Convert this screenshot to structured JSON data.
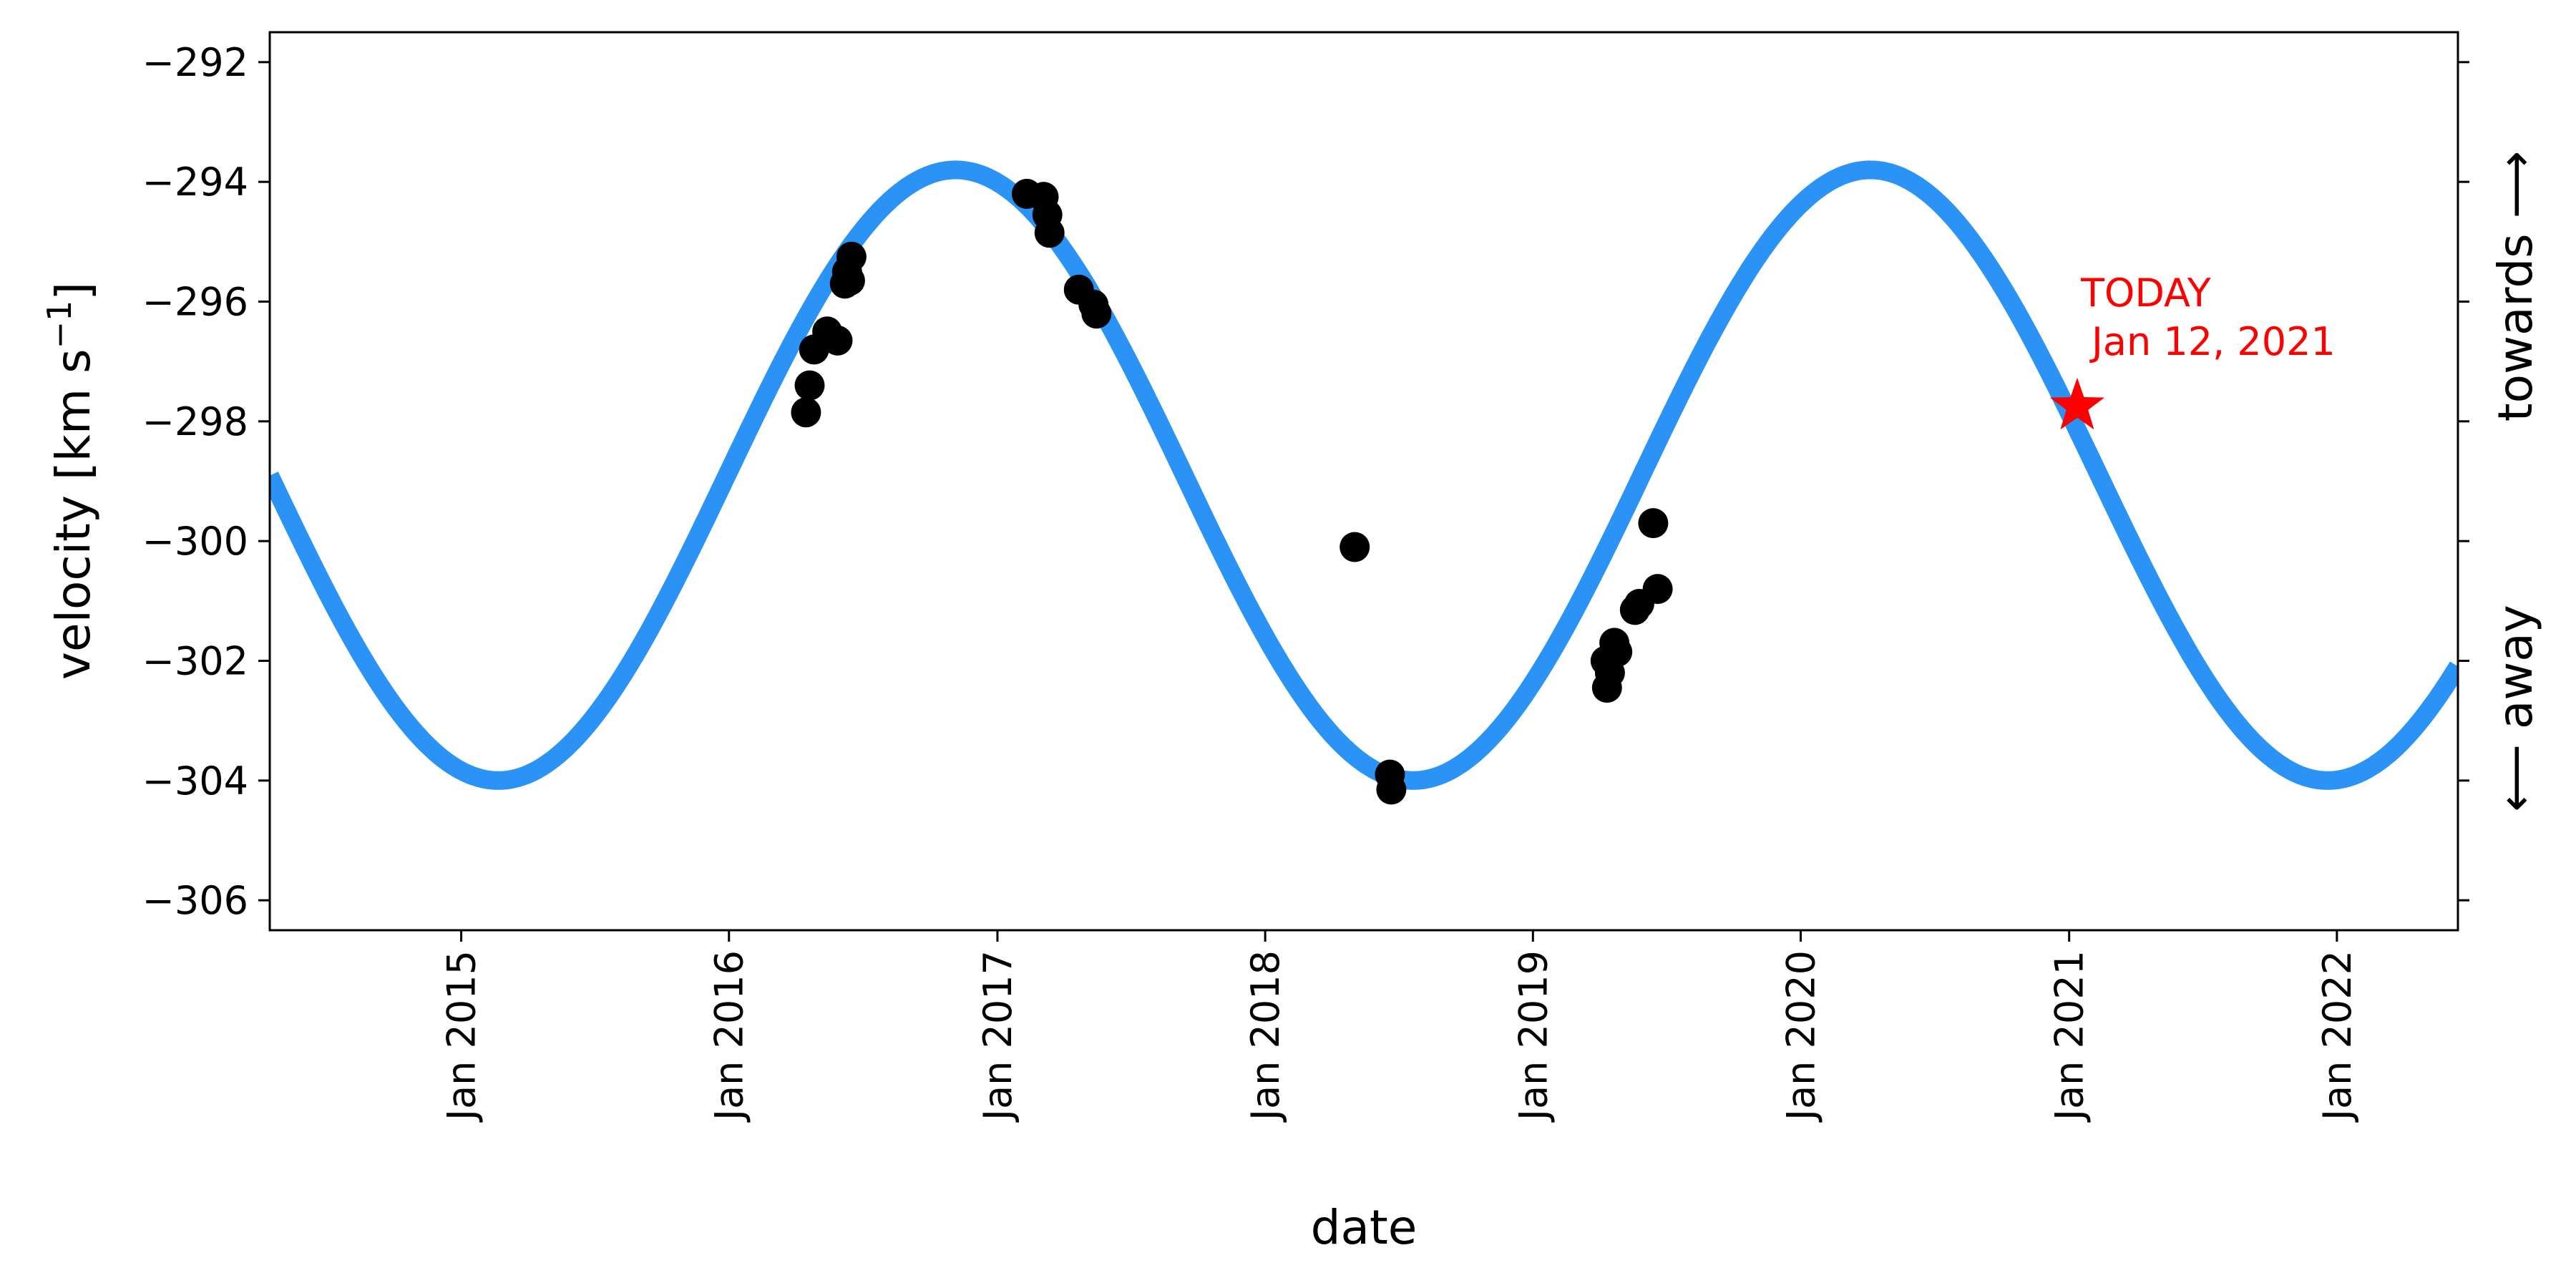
{
  "chart_data": {
    "type": "scatter",
    "xlabel": "date",
    "ylabel_main": "velocity [km s",
    "ylabel_sup": "−1",
    "ylabel_close": "]",
    "right_label_towards": "towards ⟶",
    "right_label_away": "⟵ away",
    "xlim": [
      "2014-04-15",
      "2022-06-15"
    ],
    "ylim": [
      -306.5,
      -291.5
    ],
    "x_ticks": [
      {
        "date": "2015-01-01",
        "label": "Jan 2015"
      },
      {
        "date": "2016-01-01",
        "label": "Jan 2016"
      },
      {
        "date": "2017-01-01",
        "label": "Jan 2017"
      },
      {
        "date": "2018-01-01",
        "label": "Jan 2018"
      },
      {
        "date": "2019-01-01",
        "label": "Jan 2019"
      },
      {
        "date": "2020-01-01",
        "label": "Jan 2020"
      },
      {
        "date": "2021-01-01",
        "label": "Jan 2021"
      },
      {
        "date": "2022-01-01",
        "label": "Jan 2022"
      }
    ],
    "y_ticks": [
      {
        "value": -292,
        "label": "−292"
      },
      {
        "value": -294,
        "label": "−294"
      },
      {
        "value": -296,
        "label": "−296"
      },
      {
        "value": -298,
        "label": "−298"
      },
      {
        "value": -300,
        "label": "−300"
      },
      {
        "value": -302,
        "label": "−302"
      },
      {
        "value": -304,
        "label": "−304"
      },
      {
        "value": -306,
        "label": "−306"
      }
    ],
    "model": {
      "period_days": 1247,
      "mean": -298.9,
      "amplitude": 5.1,
      "max_date": "2016-11-05",
      "color": "#2a93f5"
    },
    "observations": [
      {
        "date": "2016-04-15",
        "v": -297.85
      },
      {
        "date": "2016-04-20",
        "v": -297.4
      },
      {
        "date": "2016-04-26",
        "v": -296.8
      },
      {
        "date": "2016-05-14",
        "v": -296.5
      },
      {
        "date": "2016-05-28",
        "v": -296.65
      },
      {
        "date": "2016-06-07",
        "v": -295.7
      },
      {
        "date": "2016-06-10",
        "v": -295.5
      },
      {
        "date": "2016-06-14",
        "v": -295.65
      },
      {
        "date": "2016-06-16",
        "v": -295.25
      },
      {
        "date": "2017-02-10",
        "v": -294.2
      },
      {
        "date": "2017-03-05",
        "v": -294.25
      },
      {
        "date": "2017-03-10",
        "v": -294.55
      },
      {
        "date": "2017-03-13",
        "v": -294.85
      },
      {
        "date": "2017-04-22",
        "v": -295.8
      },
      {
        "date": "2017-05-12",
        "v": -296.05
      },
      {
        "date": "2017-05-16",
        "v": -296.2
      },
      {
        "date": "2018-05-03",
        "v": -300.1
      },
      {
        "date": "2018-06-20",
        "v": -303.9
      },
      {
        "date": "2018-06-22",
        "v": -304.15
      },
      {
        "date": "2019-04-10",
        "v": -302.0
      },
      {
        "date": "2019-04-12",
        "v": -302.45
      },
      {
        "date": "2019-04-16",
        "v": -302.2
      },
      {
        "date": "2019-04-22",
        "v": -301.7
      },
      {
        "date": "2019-04-26",
        "v": -301.85
      },
      {
        "date": "2019-05-20",
        "v": -301.15
      },
      {
        "date": "2019-05-26",
        "v": -301.05
      },
      {
        "date": "2019-06-14",
        "v": -299.7
      },
      {
        "date": "2019-06-20",
        "v": -300.8
      }
    ],
    "marker_color": "#000000",
    "today": {
      "date": "2021-01-12",
      "v": -297.75,
      "label_line1": "TODAY",
      "label_line2": "Jan 12, 2021",
      "color": "#ff0000"
    }
  }
}
